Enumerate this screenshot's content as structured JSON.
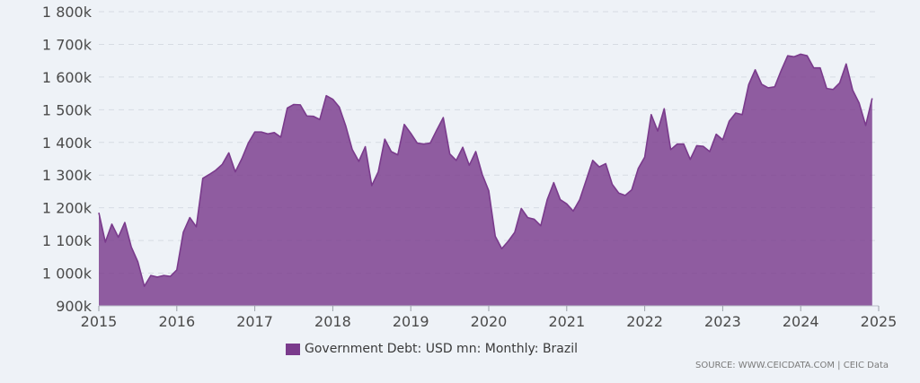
{
  "chart_data": {
    "type": "area",
    "title": "",
    "xlabel": "",
    "ylabel": "",
    "ylim": [
      900000,
      1800000
    ],
    "xlim": [
      "2015-01",
      "2025-01"
    ],
    "grid": true,
    "y_ticks": [
      900000,
      1000000,
      1100000,
      1200000,
      1300000,
      1400000,
      1500000,
      1600000,
      1700000,
      1800000
    ],
    "y_tick_labels": [
      "900k",
      "1 000k",
      "1 100k",
      "1 200k",
      "1 300k",
      "1 400k",
      "1 500k",
      "1 600k",
      "1 700k",
      "1 800k"
    ],
    "x_tick_labels": [
      "2015",
      "2016",
      "2017",
      "2018",
      "2019",
      "2020",
      "2021",
      "2022",
      "2023",
      "2024",
      "2025"
    ],
    "series": [
      {
        "name": "Government Debt: USD mn: Monthly: Brazil",
        "color": "#7a3b8c",
        "points": [
          [
            "2015-01",
            1185000
          ],
          [
            "2015-02",
            1095000
          ],
          [
            "2015-03",
            1150000
          ],
          [
            "2015-04",
            1110000
          ],
          [
            "2015-05",
            1155000
          ],
          [
            "2015-06",
            1080000
          ],
          [
            "2015-07",
            1035000
          ],
          [
            "2015-08",
            960000
          ],
          [
            "2015-09",
            993000
          ],
          [
            "2015-10",
            988000
          ],
          [
            "2015-11",
            993000
          ],
          [
            "2015-12",
            990000
          ],
          [
            "2016-01",
            1010000
          ],
          [
            "2016-02",
            1125000
          ],
          [
            "2016-03",
            1170000
          ],
          [
            "2016-04",
            1142000
          ],
          [
            "2016-05",
            1290000
          ],
          [
            "2016-06",
            1302000
          ],
          [
            "2016-07",
            1315000
          ],
          [
            "2016-08",
            1333000
          ],
          [
            "2016-09",
            1368000
          ],
          [
            "2016-10",
            1310000
          ],
          [
            "2016-11",
            1350000
          ],
          [
            "2016-12",
            1398000
          ],
          [
            "2017-01",
            1432000
          ],
          [
            "2017-02",
            1432000
          ],
          [
            "2017-03",
            1426000
          ],
          [
            "2017-04",
            1430000
          ],
          [
            "2017-05",
            1416000
          ],
          [
            "2017-06",
            1505000
          ],
          [
            "2017-07",
            1516000
          ],
          [
            "2017-08",
            1515000
          ],
          [
            "2017-09",
            1481000
          ],
          [
            "2017-10",
            1480000
          ],
          [
            "2017-11",
            1470000
          ],
          [
            "2017-12",
            1543000
          ],
          [
            "2018-01",
            1532000
          ],
          [
            "2018-02",
            1508000
          ],
          [
            "2018-03",
            1450000
          ],
          [
            "2018-04",
            1378000
          ],
          [
            "2018-05",
            1342000
          ],
          [
            "2018-06",
            1387000
          ],
          [
            "2018-07",
            1268000
          ],
          [
            "2018-08",
            1310000
          ],
          [
            "2018-09",
            1410000
          ],
          [
            "2018-10",
            1372000
          ],
          [
            "2018-11",
            1362000
          ],
          [
            "2018-12",
            1455000
          ],
          [
            "2019-01",
            1428000
          ],
          [
            "2019-02",
            1398000
          ],
          [
            "2019-03",
            1395000
          ],
          [
            "2019-04",
            1398000
          ],
          [
            "2019-05",
            1438000
          ],
          [
            "2019-06",
            1476000
          ],
          [
            "2019-07",
            1365000
          ],
          [
            "2019-08",
            1345000
          ],
          [
            "2019-09",
            1385000
          ],
          [
            "2019-10",
            1330000
          ],
          [
            "2019-11",
            1372000
          ],
          [
            "2019-12",
            1302000
          ],
          [
            "2020-01",
            1252000
          ],
          [
            "2020-02",
            1113000
          ],
          [
            "2020-03",
            1075000
          ],
          [
            "2020-04",
            1098000
          ],
          [
            "2020-05",
            1125000
          ],
          [
            "2020-06",
            1198000
          ],
          [
            "2020-07",
            1170000
          ],
          [
            "2020-08",
            1165000
          ],
          [
            "2020-09",
            1145000
          ],
          [
            "2020-10",
            1225000
          ],
          [
            "2020-11",
            1277000
          ],
          [
            "2020-12",
            1225000
          ],
          [
            "2021-01",
            1212000
          ],
          [
            "2021-02",
            1190000
          ],
          [
            "2021-03",
            1225000
          ],
          [
            "2021-04",
            1285000
          ],
          [
            "2021-05",
            1345000
          ],
          [
            "2021-06",
            1325000
          ],
          [
            "2021-07",
            1335000
          ],
          [
            "2021-08",
            1272000
          ],
          [
            "2021-09",
            1245000
          ],
          [
            "2021-10",
            1238000
          ],
          [
            "2021-11",
            1255000
          ],
          [
            "2021-12",
            1320000
          ],
          [
            "2022-01",
            1355000
          ],
          [
            "2022-02",
            1485000
          ],
          [
            "2022-03",
            1435000
          ],
          [
            "2022-04",
            1503000
          ],
          [
            "2022-05",
            1378000
          ],
          [
            "2022-06",
            1395000
          ],
          [
            "2022-07",
            1395000
          ],
          [
            "2022-08",
            1348000
          ],
          [
            "2022-09",
            1390000
          ],
          [
            "2022-10",
            1388000
          ],
          [
            "2022-11",
            1372000
          ],
          [
            "2022-12",
            1425000
          ],
          [
            "2023-01",
            1408000
          ],
          [
            "2023-02",
            1465000
          ],
          [
            "2023-03",
            1490000
          ],
          [
            "2023-04",
            1485000
          ],
          [
            "2023-05",
            1577000
          ],
          [
            "2023-06",
            1622000
          ],
          [
            "2023-07",
            1578000
          ],
          [
            "2023-08",
            1567000
          ],
          [
            "2023-09",
            1570000
          ],
          [
            "2023-10",
            1620000
          ],
          [
            "2023-11",
            1665000
          ],
          [
            "2023-12",
            1662000
          ],
          [
            "2024-01",
            1670000
          ],
          [
            "2024-02",
            1665000
          ],
          [
            "2024-03",
            1628000
          ],
          [
            "2024-04",
            1628000
          ],
          [
            "2024-05",
            1565000
          ],
          [
            "2024-06",
            1562000
          ],
          [
            "2024-07",
            1582000
          ],
          [
            "2024-08",
            1640000
          ],
          [
            "2024-09",
            1560000
          ],
          [
            "2024-10",
            1520000
          ],
          [
            "2024-11",
            1452000
          ],
          [
            "2024-12",
            1535000
          ]
        ]
      }
    ],
    "legend_position": "bottom-center"
  },
  "legend": {
    "label": "Government Debt: USD mn: Monthly: Brazil",
    "color": "#7a3b8c"
  },
  "source": "SOURCE: WWW.CEICDATA.COM | CEIC Data"
}
